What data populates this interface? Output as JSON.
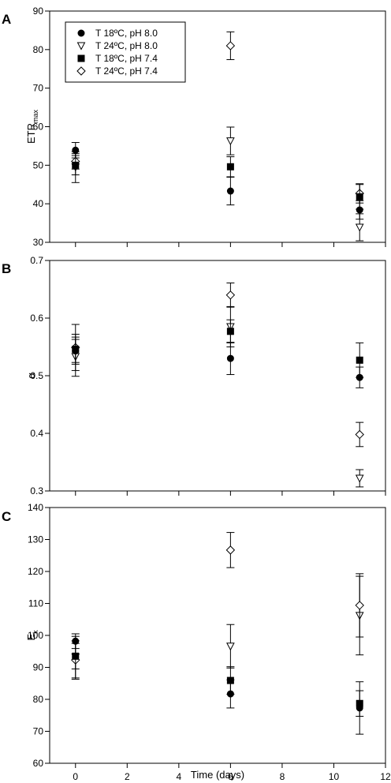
{
  "chart_data": {
    "type": "scatter",
    "xlabel": "Time (days)",
    "xlim": [
      -1,
      12
    ],
    "xticks": [
      0,
      2,
      4,
      6,
      8,
      10,
      12
    ],
    "legend_position": "top-left",
    "markers": {
      "T 18ºC, pH 8.0": "filled-circle",
      "T 24ºC, pH 8.0": "open-triangle-down",
      "T 18ºC, pH 7.4": "filled-square",
      "T 24ºC, pH 7.4": "open-diamond"
    },
    "legend": [
      "T 18ºC, pH 8.0",
      "T 24ºC, pH 8.0",
      "T 18ºC, pH 7.4",
      "T 24ºC, pH 7.4"
    ],
    "panels": [
      {
        "letter": "A",
        "ylabel_main": "ETR",
        "ylabel_sub": "max",
        "ylim": [
          30,
          90
        ],
        "yticks": [
          "30",
          "40",
          "50",
          "60",
          "70",
          "80",
          "90"
        ],
        "show_legend": true,
        "show_xticklabels": false,
        "series": [
          {
            "name": "T 18ºC, pH 8.0",
            "x": [
              0,
              6,
              11
            ],
            "y": [
              53.9,
              43.3,
              38.4
            ],
            "err": [
              2.0,
              3.6,
              2.4
            ]
          },
          {
            "name": "T 24ºC, pH 8.0",
            "x": [
              0,
              6,
              11
            ],
            "y": [
              49.5,
              56.3,
              33.9
            ],
            "err": [
              4.0,
              3.6,
              3.5
            ]
          },
          {
            "name": "T 18ºC, pH 7.4",
            "x": [
              0,
              6,
              11
            ],
            "y": [
              50.0,
              49.6,
              41.8
            ],
            "err": [
              2.5,
              2.6,
              3.2
            ]
          },
          {
            "name": "T 24ºC, pH 7.4",
            "x": [
              0,
              6,
              11
            ],
            "y": [
              51.0,
              81.0,
              42.7
            ],
            "err": [
              2.0,
              3.6,
              2.5
            ]
          }
        ]
      },
      {
        "letter": "B",
        "ylabel_main": "α",
        "ylabel_sub": "",
        "ylim": [
          0.3,
          0.7
        ],
        "yticks": [
          "0.3",
          "0.4",
          "0.5",
          "0.6",
          "0.7"
        ],
        "show_legend": false,
        "show_xticklabels": false,
        "series": [
          {
            "name": "T 18ºC, pH 8.0",
            "x": [
              0,
              6,
              11
            ],
            "y": [
              0.543,
              0.53,
              0.497
            ],
            "err": [
              0.02,
              0.028,
              0.018
            ]
          },
          {
            "name": "T 24ºC, pH 8.0",
            "x": [
              0,
              6,
              11
            ],
            "y": [
              0.533,
              0.585,
              0.322
            ],
            "err": [
              0.034,
              0.035,
              0.015
            ]
          },
          {
            "name": "T 18ºC, pH 7.4",
            "x": [
              0,
              6,
              11
            ],
            "y": [
              0.546,
              0.577,
              0.527
            ],
            "err": [
              0.026,
              0.02,
              0.03
            ]
          },
          {
            "name": "T 24ºC, pH 7.4",
            "x": [
              0,
              6,
              11
            ],
            "y": [
              0.549,
              0.64,
              0.398
            ],
            "err": [
              0.04,
              0.021,
              0.021
            ]
          }
        ]
      },
      {
        "letter": "C",
        "ylabel_main": "E",
        "ylabel_sub": "k",
        "ylim": [
          60,
          140
        ],
        "yticks": [
          "60",
          "70",
          "80",
          "90",
          "100",
          "110",
          "120",
          "130",
          "140"
        ],
        "show_legend": false,
        "show_xticklabels": true,
        "series": [
          {
            "name": "T 18ºC, pH 8.0",
            "x": [
              0,
              6,
              11
            ],
            "y": [
              98.2,
              81.7,
              77.3
            ],
            "err": [
              2.3,
              4.4,
              8.2
            ]
          },
          {
            "name": "T 24ºC, pH 8.0",
            "x": [
              0,
              6,
              11
            ],
            "y": [
              93.2,
              96.6,
              106.2
            ],
            "err": [
              6.5,
              6.8,
              12.3
            ]
          },
          {
            "name": "T 18ºC, pH 7.4",
            "x": [
              0,
              6,
              11
            ],
            "y": [
              93.5,
              85.9,
              78.7
            ],
            "err": [
              4.0,
              4.3,
              4.0
            ]
          },
          {
            "name": "T 24ºC, pH 7.4",
            "x": [
              0,
              6,
              11
            ],
            "y": [
              92.3,
              126.7,
              109.4
            ],
            "err": [
              6.0,
              5.5,
              9.9
            ]
          }
        ]
      }
    ]
  }
}
